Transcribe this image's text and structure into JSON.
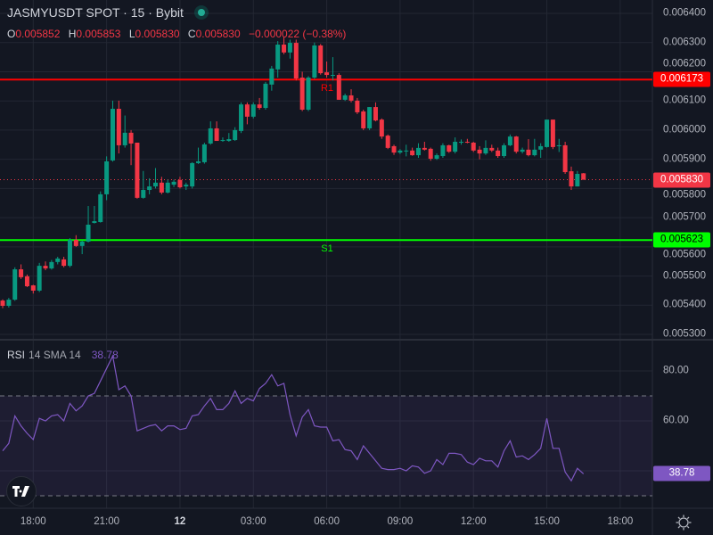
{
  "header": {
    "title": "JASMYUSDT SPOT · 15 · Bybit",
    "status_color": "#22ab94",
    "ohlc": [
      {
        "key": "O",
        "value": "0.005852"
      },
      {
        "key": "H",
        "value": "0.005853"
      },
      {
        "key": "L",
        "value": "0.005830"
      },
      {
        "key": "C",
        "value": "0.005830"
      }
    ],
    "change": "−0.000022 (−0.38%)"
  },
  "price_axis": {
    "ticks": [
      "0.006400",
      "0.006300",
      "0.006200",
      "0.006100",
      "0.006000",
      "0.005900",
      "0.005800",
      "0.005700",
      "0.005600",
      "0.005500",
      "0.005400",
      "0.005300"
    ],
    "badges": [
      {
        "label": "0.006173",
        "value": 0.006173,
        "bg": "#ff0000",
        "fg": "#ffffff"
      },
      {
        "label": "0.005830",
        "value": 0.00583,
        "bg": "#f23645",
        "fg": "#ffffff"
      },
      {
        "label": "0.005623",
        "value": 0.005623,
        "bg": "#00ff00",
        "fg": "#000000"
      }
    ]
  },
  "levels": [
    {
      "label": "R1",
      "value": 0.006173,
      "color": "#ff0000"
    },
    {
      "label": "S1",
      "value": 0.005623,
      "color": "#00ff00"
    }
  ],
  "last_price": 0.00583,
  "time_axis": {
    "ticks": [
      "18:00",
      "21:00",
      "12",
      "03:00",
      "06:00",
      "09:00",
      "12:00",
      "15:00",
      "18:00"
    ],
    "tick_candle_index": [
      5,
      17,
      29,
      41,
      53,
      65,
      77,
      89,
      101
    ]
  },
  "rsi": {
    "name": "RSI",
    "params": "14 SMA 14",
    "value": "38.78",
    "color": "#7e57c2",
    "ticks": [
      "80.00",
      "60.00"
    ],
    "upper_band": 70,
    "lower_band": 30
  },
  "colors": {
    "up": "#089981",
    "down": "#f23645",
    "background": "#131722",
    "grid": "#232733"
  },
  "chart_data": {
    "type": "candlestick",
    "symbol": "JASMYUSDT",
    "interval": "15",
    "ylim": [
      0.00528,
      0.00641
    ],
    "candles": [
      [
        0.005416,
        0.00542,
        0.00539,
        0.005398
      ],
      [
        0.005398,
        0.005425,
        0.005392,
        0.005419
      ],
      [
        0.005419,
        0.00553,
        0.005415,
        0.005523
      ],
      [
        0.005523,
        0.00554,
        0.00549,
        0.005496
      ],
      [
        0.005499,
        0.005505,
        0.005462,
        0.005465
      ],
      [
        0.005468,
        0.00547,
        0.00544,
        0.00545
      ],
      [
        0.00545,
        0.005545,
        0.005445,
        0.005535
      ],
      [
        0.005535,
        0.00555,
        0.00552,
        0.005526
      ],
      [
        0.005526,
        0.005555,
        0.005522,
        0.005548
      ],
      [
        0.005548,
        0.005566,
        0.00554,
        0.00556
      ],
      [
        0.005557,
        0.005566,
        0.00553,
        0.005535
      ],
      [
        0.005535,
        0.00563,
        0.00553,
        0.005624
      ],
      [
        0.005624,
        0.00564,
        0.0056,
        0.005603
      ],
      [
        0.005603,
        0.005622,
        0.005575,
        0.005618
      ],
      [
        0.005618,
        0.00574,
        0.005615,
        0.005676
      ],
      [
        0.005682,
        0.00574,
        0.00568,
        0.005688
      ],
      [
        0.005685,
        0.00579,
        0.005683,
        0.00578
      ],
      [
        0.00578,
        0.00591,
        0.00576,
        0.005893
      ],
      [
        0.005896,
        0.006101,
        0.005892,
        0.006073
      ],
      [
        0.006073,
        0.006101,
        0.00592,
        0.005948
      ],
      [
        0.005948,
        0.00605,
        0.00594,
        0.005991
      ],
      [
        0.005991,
        0.006,
        0.00588,
        0.005954
      ],
      [
        0.005957,
        0.005957,
        0.005765,
        0.005768
      ],
      [
        0.005768,
        0.00586,
        0.005765,
        0.005795
      ],
      [
        0.005795,
        0.005835,
        0.00578,
        0.005807
      ],
      [
        0.005807,
        0.00587,
        0.0058,
        0.00582
      ],
      [
        0.00582,
        0.00584,
        0.00578,
        0.005786
      ],
      [
        0.005786,
        0.00583,
        0.005783,
        0.00582
      ],
      [
        0.005813,
        0.00583,
        0.005805,
        0.005823
      ],
      [
        0.005829,
        0.00584,
        0.0058,
        0.005804
      ],
      [
        0.005807,
        0.00582,
        0.005795,
        0.005813
      ],
      [
        0.005807,
        0.00589,
        0.0058,
        0.005887
      ],
      [
        0.005887,
        0.00594,
        0.005884,
        0.005893
      ],
      [
        0.00589,
        0.005957,
        0.005885,
        0.005951
      ],
      [
        0.005954,
        0.00603,
        0.00595,
        0.006006
      ],
      [
        0.006006,
        0.00603,
        0.00597,
        0.005963
      ],
      [
        0.005963,
        0.005975,
        0.00596,
        0.005966
      ],
      [
        0.005963,
        0.00599,
        0.00596,
        0.005969
      ],
      [
        0.005966,
        0.00601,
        0.005963,
        0.006
      ],
      [
        0.005997,
        0.006095,
        0.00599,
        0.006088
      ],
      [
        0.006088,
        0.006095,
        0.00602,
        0.006046
      ],
      [
        0.006046,
        0.006095,
        0.00604,
        0.006088
      ],
      [
        0.006088,
        0.00611,
        0.00607,
        0.006076
      ],
      [
        0.006076,
        0.006165,
        0.00607,
        0.006159
      ],
      [
        0.006156,
        0.00622,
        0.006135,
        0.006211
      ],
      [
        0.006208,
        0.006305,
        0.00618,
        0.006293
      ],
      [
        0.006293,
        0.00632,
        0.00626,
        0.006266
      ],
      [
        0.006266,
        0.00631,
        0.006245,
        0.006299
      ],
      [
        0.006299,
        0.00631,
        0.00617,
        0.006177
      ],
      [
        0.00618,
        0.0062,
        0.006065,
        0.00607
      ],
      [
        0.00607,
        0.006185,
        0.006065,
        0.00618
      ],
      [
        0.00618,
        0.0063,
        0.006175,
        0.00629
      ],
      [
        0.00629,
        0.006295,
        0.00619,
        0.006195
      ],
      [
        0.006198,
        0.006235,
        0.00618,
        0.006189
      ],
      [
        0.006189,
        0.00625,
        0.00617,
        0.006189
      ],
      [
        0.006189,
        0.006195,
        0.006104,
        0.006104
      ],
      [
        0.006104,
        0.006125,
        0.0061,
        0.006119
      ],
      [
        0.006119,
        0.00614,
        0.006095,
        0.006101
      ],
      [
        0.006101,
        0.00611,
        0.006055,
        0.006061
      ],
      [
        0.006064,
        0.00607,
        0.006,
        0.006006
      ],
      [
        0.006006,
        0.006079,
        0.006,
        0.006079
      ],
      [
        0.006079,
        0.006095,
        0.00603,
        0.006033
      ],
      [
        0.006036,
        0.00604,
        0.00597,
        0.005978
      ],
      [
        0.005981,
        0.005985,
        0.005935,
        0.005939
      ],
      [
        0.005945,
        0.00595,
        0.005915,
        0.005923
      ],
      [
        0.005923,
        0.005935,
        0.005918,
        0.00593
      ],
      [
        0.00593,
        0.00595,
        0.00591,
        0.00593
      ],
      [
        0.00593,
        0.00594,
        0.005912,
        0.005914
      ],
      [
        0.005914,
        0.005955,
        0.005905,
        0.005939
      ],
      [
        0.005939,
        0.00596,
        0.00593,
        0.005933
      ],
      [
        0.005936,
        0.00594,
        0.005895,
        0.005902
      ],
      [
        0.005902,
        0.00592,
        0.005898,
        0.005914
      ],
      [
        0.005911,
        0.005955,
        0.005905,
        0.005948
      ],
      [
        0.005948,
        0.00595,
        0.005922,
        0.005926
      ],
      [
        0.005926,
        0.005975,
        0.00592,
        0.00596
      ],
      [
        0.00596,
        0.005968,
        0.00595,
        0.00596
      ],
      [
        0.00596,
        0.00597,
        0.005955,
        0.005957
      ],
      [
        0.005957,
        0.00596,
        0.005925,
        0.00593
      ],
      [
        0.005933,
        0.005945,
        0.0059,
        0.00592
      ],
      [
        0.00592,
        0.005965,
        0.005915,
        0.005939
      ],
      [
        0.005939,
        0.00595,
        0.005925,
        0.00593
      ],
      [
        0.00593,
        0.00594,
        0.005905,
        0.005911
      ],
      [
        0.005911,
        0.005955,
        0.005905,
        0.005948
      ],
      [
        0.005948,
        0.005985,
        0.005945,
        0.005978
      ],
      [
        0.005978,
        0.00598,
        0.00592,
        0.005926
      ],
      [
        0.005926,
        0.00594,
        0.00592,
        0.005933
      ],
      [
        0.005933,
        0.005969,
        0.00591,
        0.005914
      ],
      [
        0.005914,
        0.00597,
        0.00591,
        0.005933
      ],
      [
        0.005933,
        0.005955,
        0.005905,
        0.005945
      ],
      [
        0.005942,
        0.006036,
        0.00594,
        0.006036
      ],
      [
        0.006036,
        0.006036,
        0.005935,
        0.005942
      ],
      [
        0.005948,
        0.00597,
        0.005925,
        0.005948
      ],
      [
        0.005948,
        0.00596,
        0.00585,
        0.005856
      ],
      [
        0.005859,
        0.005875,
        0.005795,
        0.005807
      ],
      [
        0.005807,
        0.00586,
        0.005807,
        0.00585
      ],
      [
        0.005852,
        0.005853,
        0.00583,
        0.00583
      ]
    ],
    "rsi_values": [
      48,
      51,
      62,
      58,
      55,
      52.5,
      61,
      60,
      62,
      62.5,
      60,
      67,
      64,
      66,
      70,
      71,
      76,
      81,
      86,
      72.5,
      74,
      70,
      56,
      57,
      58,
      58.5,
      56,
      58,
      58,
      56.5,
      57,
      62,
      62.5,
      66,
      69,
      64.5,
      64.5,
      67,
      72,
      67,
      69,
      68,
      73,
      75,
      78.5,
      74,
      75,
      62.5,
      54,
      61.5,
      64.5,
      58,
      57.5,
      57.5,
      52,
      52.5,
      48.5,
      48,
      44.5,
      50,
      47,
      44,
      41,
      40.5,
      40.5,
      41,
      40,
      42,
      41.5,
      39,
      40,
      44.5,
      42.5,
      47,
      47,
      46.5,
      43.5,
      42.5,
      45,
      44,
      44,
      41.5,
      48,
      52,
      45.5,
      46,
      44.5,
      46.5,
      49,
      61,
      49,
      49,
      39.5,
      36,
      41,
      38.78
    ],
    "rsi_ylim": [
      20,
      90
    ]
  }
}
